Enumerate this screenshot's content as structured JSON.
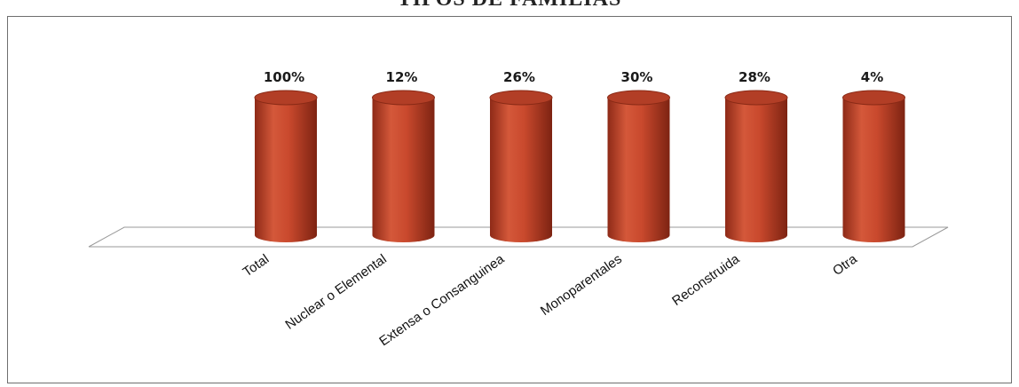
{
  "chart_data": {
    "type": "bar",
    "title": "TIPOS DE FAMILIAS",
    "categories": [
      "Total",
      "Nuclear o Elemental",
      "Extensa o Consanguinea",
      "Monoparentales",
      "Reconstruida",
      "Otra"
    ],
    "values": [
      100,
      12,
      26,
      30,
      28,
      4
    ],
    "data_labels": [
      "100%",
      "12%",
      "26%",
      "30%",
      "28%",
      "4%"
    ],
    "bar_shape": "cylinder",
    "bar_color": "#c0452c",
    "xlabel": "",
    "ylabel": "",
    "grid": false,
    "legend": "none"
  }
}
